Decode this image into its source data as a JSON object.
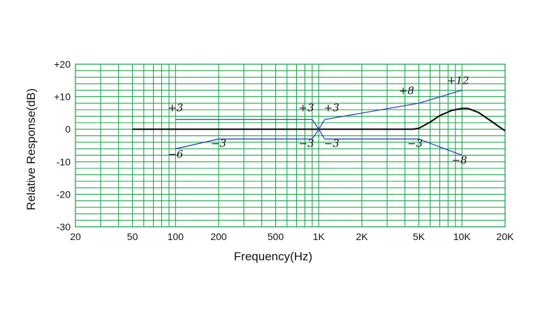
{
  "chart_data": {
    "type": "line",
    "title": "",
    "xlabel": "Frequency(Hz)",
    "ylabel": "Relative Response(dB)",
    "xscale": "log",
    "xlim": [
      20,
      20000
    ],
    "ylim": [
      -30,
      20
    ],
    "grid": true,
    "x_ticks": [
      {
        "value": 20,
        "label": "20"
      },
      {
        "value": 50,
        "label": "50"
      },
      {
        "value": 100,
        "label": "100"
      },
      {
        "value": 200,
        "label": "200"
      },
      {
        "value": 500,
        "label": "500"
      },
      {
        "value": 1000,
        "label": "1K"
      },
      {
        "value": 2000,
        "label": "2K"
      },
      {
        "value": 5000,
        "label": "5K"
      },
      {
        "value": 10000,
        "label": "10K"
      },
      {
        "value": 20000,
        "label": "20K"
      }
    ],
    "y_ticks": [
      {
        "value": 20,
        "label": "+20"
      },
      {
        "value": 10,
        "label": "+10"
      },
      {
        "value": 0,
        "label": "0"
      },
      {
        "value": -10,
        "label": "-10"
      },
      {
        "value": -20,
        "label": "-20"
      },
      {
        "value": -30,
        "label": "-30"
      }
    ],
    "colors": {
      "grid": "#1aa64a",
      "response": "#111111",
      "adjust": "#2a3fb5"
    },
    "series": [
      {
        "key": "response",
        "values": [
          [
            50,
            0
          ],
          [
            4500,
            0
          ],
          [
            5000,
            0.3
          ],
          [
            6000,
            2.2
          ],
          [
            7000,
            4.2
          ],
          [
            8500,
            5.8
          ],
          [
            10000,
            6.4
          ],
          [
            11000,
            6.4
          ],
          [
            13000,
            5.2
          ],
          [
            16000,
            2.5
          ],
          [
            20000,
            -0.5
          ]
        ]
      },
      {
        "key": "adjust_low_boost",
        "values": [
          [
            100,
            3
          ],
          [
            900,
            3
          ],
          [
            1000,
            0
          ]
        ]
      },
      {
        "key": "adjust_low_cut",
        "values": [
          [
            100,
            -6
          ],
          [
            200,
            -3
          ],
          [
            900,
            -3
          ],
          [
            1000,
            0
          ]
        ]
      },
      {
        "key": "adjust_high_boost",
        "values": [
          [
            1000,
            0
          ],
          [
            1100,
            3
          ],
          [
            5000,
            8
          ],
          [
            10000,
            12
          ]
        ]
      },
      {
        "key": "adjust_high_cut",
        "values": [
          [
            1000,
            0
          ],
          [
            1100,
            -3
          ],
          [
            5000,
            -3
          ],
          [
            10000,
            -8
          ]
        ]
      }
    ],
    "annotations": [
      {
        "text": "+3",
        "x": 100,
        "y": 5.5,
        "anchor": "middle"
      },
      {
        "text": "−6",
        "x": 100,
        "y": -8.8,
        "anchor": "middle"
      },
      {
        "text": "−3",
        "x": 200,
        "y": -5.4,
        "anchor": "middle"
      },
      {
        "text": "+3",
        "x": 820,
        "y": 5.5,
        "anchor": "middle"
      },
      {
        "text": "+3",
        "x": 1230,
        "y": 5.5,
        "anchor": "middle"
      },
      {
        "text": "−3",
        "x": 820,
        "y": -5.4,
        "anchor": "middle"
      },
      {
        "text": "−3",
        "x": 1230,
        "y": -5.4,
        "anchor": "middle"
      },
      {
        "text": "+8",
        "x": 4100,
        "y": 10.8,
        "anchor": "middle"
      },
      {
        "text": "+12",
        "x": 9400,
        "y": 13.9,
        "anchor": "middle"
      },
      {
        "text": "−3",
        "x": 4700,
        "y": -5.4,
        "anchor": "middle"
      },
      {
        "text": "−8",
        "x": 9600,
        "y": -10.6,
        "anchor": "middle"
      }
    ]
  }
}
